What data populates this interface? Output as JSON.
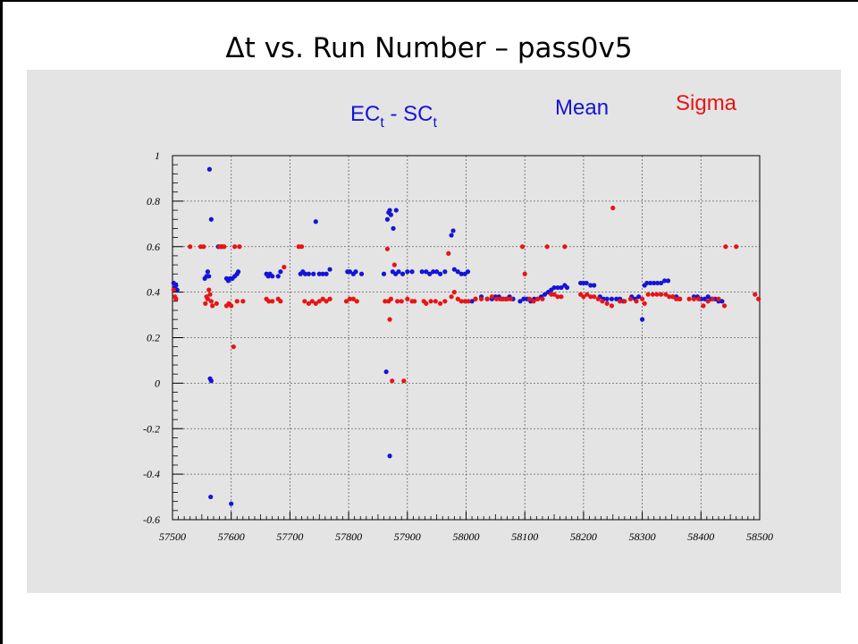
{
  "page": {
    "title": "Δt vs. Run Number – pass0v5"
  },
  "chart_data": {
    "type": "scatter",
    "title": "",
    "xlabel": "",
    "ylabel": "",
    "xlim": [
      57500,
      58500
    ],
    "ylim": [
      -0.6,
      1.0
    ],
    "x_ticks": [
      57500,
      57600,
      57700,
      57800,
      57900,
      58000,
      58100,
      58200,
      58300,
      58400,
      58500
    ],
    "y_ticks": [
      -0.6,
      -0.4,
      -0.2,
      0,
      0.2,
      0.4,
      0.6,
      0.8,
      1
    ],
    "x_tick_labels": [
      "57500",
      "57600",
      "57700",
      "57800",
      "57900",
      "58000",
      "58100",
      "58200",
      "58300",
      "58400",
      "58500"
    ],
    "y_tick_labels": [
      "-0.6",
      "-0.4",
      "-0.2",
      "0",
      "0.2",
      "0.4",
      "0.6",
      "0.8",
      "1"
    ],
    "grid": true,
    "annotations": {
      "quantity": {
        "main": "EC",
        "sub1": "t",
        "mid": " - SC",
        "sub2": "t"
      },
      "mean_label": "Mean",
      "sigma_label": "Sigma"
    },
    "series": [
      {
        "name": "Mean",
        "color": "#1414d8",
        "points": [
          [
            57502,
            0.44
          ],
          [
            57504,
            0.42
          ],
          [
            57506,
            0.43
          ],
          [
            57508,
            0.41
          ],
          [
            57555,
            0.46
          ],
          [
            57558,
            0.47
          ],
          [
            57560,
            0.49
          ],
          [
            57562,
            0.47
          ],
          [
            57564,
            0.02
          ],
          [
            57566,
            0.01
          ],
          [
            57563,
            0.94
          ],
          [
            57566,
            0.72
          ],
          [
            57565,
            -0.5
          ],
          [
            57578,
            0.6
          ],
          [
            57583,
            0.6
          ],
          [
            57592,
            0.46
          ],
          [
            57595,
            0.45
          ],
          [
            57598,
            0.46
          ],
          [
            57600,
            -0.53
          ],
          [
            57602,
            0.46
          ],
          [
            57606,
            0.47
          ],
          [
            57610,
            0.48
          ],
          [
            57612,
            0.49
          ],
          [
            57660,
            0.48
          ],
          [
            57663,
            0.47
          ],
          [
            57666,
            0.48
          ],
          [
            57670,
            0.47
          ],
          [
            57680,
            0.47
          ],
          [
            57684,
            0.49
          ],
          [
            57718,
            0.48
          ],
          [
            57722,
            0.49
          ],
          [
            57726,
            0.48
          ],
          [
            57732,
            0.48
          ],
          [
            57740,
            0.48
          ],
          [
            57744,
            0.71
          ],
          [
            57750,
            0.48
          ],
          [
            57756,
            0.48
          ],
          [
            57762,
            0.48
          ],
          [
            57768,
            0.5
          ],
          [
            57798,
            0.49
          ],
          [
            57802,
            0.49
          ],
          [
            57808,
            0.48
          ],
          [
            57812,
            0.49
          ],
          [
            57822,
            0.48
          ],
          [
            57860,
            0.48
          ],
          [
            57864,
            0.05
          ],
          [
            57866,
            0.72
          ],
          [
            57868,
            0.75
          ],
          [
            57870,
            0.76
          ],
          [
            57870,
            -0.32
          ],
          [
            57872,
            0.74
          ],
          [
            57876,
            0.68
          ],
          [
            57881,
            0.76
          ],
          [
            57875,
            0.49
          ],
          [
            57880,
            0.48
          ],
          [
            57885,
            0.49
          ],
          [
            57892,
            0.48
          ],
          [
            57900,
            0.49
          ],
          [
            57908,
            0.49
          ],
          [
            57925,
            0.49
          ],
          [
            57932,
            0.49
          ],
          [
            57938,
            0.48
          ],
          [
            57944,
            0.49
          ],
          [
            57950,
            0.49
          ],
          [
            57956,
            0.48
          ],
          [
            57964,
            0.49
          ],
          [
            57975,
            0.65
          ],
          [
            57978,
            0.67
          ],
          [
            57980,
            0.5
          ],
          [
            57986,
            0.49
          ],
          [
            57992,
            0.48
          ],
          [
            57998,
            0.48
          ],
          [
            58003,
            0.49
          ],
          [
            58010,
            0.36
          ],
          [
            58016,
            0.37
          ],
          [
            58026,
            0.38
          ],
          [
            58036,
            0.37
          ],
          [
            58044,
            0.37
          ],
          [
            58050,
            0.38
          ],
          [
            58056,
            0.38
          ],
          [
            58062,
            0.37
          ],
          [
            58068,
            0.37
          ],
          [
            58074,
            0.38
          ],
          [
            58080,
            0.37
          ],
          [
            58092,
            0.36
          ],
          [
            58098,
            0.37
          ],
          [
            58104,
            0.37
          ],
          [
            58110,
            0.36
          ],
          [
            58116,
            0.37
          ],
          [
            58122,
            0.37
          ],
          [
            58128,
            0.38
          ],
          [
            58134,
            0.39
          ],
          [
            58140,
            0.4
          ],
          [
            58145,
            0.41
          ],
          [
            58150,
            0.42
          ],
          [
            58156,
            0.42
          ],
          [
            58162,
            0.42
          ],
          [
            58168,
            0.43
          ],
          [
            58172,
            0.42
          ],
          [
            58195,
            0.44
          ],
          [
            58200,
            0.44
          ],
          [
            58205,
            0.44
          ],
          [
            58212,
            0.43
          ],
          [
            58218,
            0.43
          ],
          [
            58228,
            0.38
          ],
          [
            58234,
            0.37
          ],
          [
            58240,
            0.37
          ],
          [
            58248,
            0.37
          ],
          [
            58256,
            0.37
          ],
          [
            58262,
            0.37
          ],
          [
            58268,
            0.36
          ],
          [
            58282,
            0.38
          ],
          [
            58288,
            0.37
          ],
          [
            58294,
            0.38
          ],
          [
            58300,
            0.28
          ],
          [
            58304,
            0.43
          ],
          [
            58308,
            0.44
          ],
          [
            58314,
            0.44
          ],
          [
            58320,
            0.44
          ],
          [
            58326,
            0.44
          ],
          [
            58332,
            0.44
          ],
          [
            58338,
            0.45
          ],
          [
            58344,
            0.45
          ],
          [
            58352,
            0.38
          ],
          [
            58358,
            0.38
          ],
          [
            58364,
            0.37
          ],
          [
            58388,
            0.38
          ],
          [
            58394,
            0.38
          ],
          [
            58400,
            0.37
          ],
          [
            58406,
            0.37
          ],
          [
            58412,
            0.38
          ],
          [
            58418,
            0.37
          ],
          [
            58424,
            0.37
          ],
          [
            58430,
            0.36
          ],
          [
            58436,
            0.36
          ]
        ]
      },
      {
        "name": "Sigma",
        "color": "#e81414",
        "points": [
          [
            57502,
            0.41
          ],
          [
            57504,
            0.38
          ],
          [
            57506,
            0.37
          ],
          [
            57530,
            0.6
          ],
          [
            57548,
            0.6
          ],
          [
            57553,
            0.6
          ],
          [
            57556,
            0.35
          ],
          [
            57558,
            0.38
          ],
          [
            57560,
            0.37
          ],
          [
            57562,
            0.41
          ],
          [
            57564,
            0.39
          ],
          [
            57566,
            0.36
          ],
          [
            57568,
            0.34
          ],
          [
            57575,
            0.35
          ],
          [
            57580,
            0.6
          ],
          [
            57585,
            0.6
          ],
          [
            57588,
            0.6
          ],
          [
            57592,
            0.34
          ],
          [
            57596,
            0.35
          ],
          [
            57600,
            0.34
          ],
          [
            57604,
            0.16
          ],
          [
            57606,
            0.6
          ],
          [
            57610,
            0.36
          ],
          [
            57614,
            0.6
          ],
          [
            57620,
            0.36
          ],
          [
            57660,
            0.37
          ],
          [
            57664,
            0.36
          ],
          [
            57670,
            0.36
          ],
          [
            57680,
            0.37
          ],
          [
            57684,
            0.36
          ],
          [
            57690,
            0.51
          ],
          [
            57715,
            0.6
          ],
          [
            57720,
            0.6
          ],
          [
            57725,
            0.36
          ],
          [
            57732,
            0.35
          ],
          [
            57738,
            0.36
          ],
          [
            57744,
            0.35
          ],
          [
            57750,
            0.36
          ],
          [
            57756,
            0.37
          ],
          [
            57762,
            0.36
          ],
          [
            57768,
            0.37
          ],
          [
            57796,
            0.36
          ],
          [
            57802,
            0.37
          ],
          [
            57808,
            0.37
          ],
          [
            57814,
            0.36
          ],
          [
            57862,
            0.36
          ],
          [
            57866,
            0.59
          ],
          [
            57868,
            0.36
          ],
          [
            57870,
            0.28
          ],
          [
            57872,
            0.37
          ],
          [
            57874,
            0.01
          ],
          [
            57878,
            0.52
          ],
          [
            57883,
            0.36
          ],
          [
            57890,
            0.36
          ],
          [
            57894,
            0.01
          ],
          [
            57900,
            0.37
          ],
          [
            57908,
            0.36
          ],
          [
            57912,
            0.36
          ],
          [
            57928,
            0.36
          ],
          [
            57932,
            0.35
          ],
          [
            57940,
            0.36
          ],
          [
            57948,
            0.36
          ],
          [
            57956,
            0.35
          ],
          [
            57964,
            0.36
          ],
          [
            57970,
            0.57
          ],
          [
            57975,
            0.38
          ],
          [
            57980,
            0.4
          ],
          [
            57986,
            0.37
          ],
          [
            57992,
            0.36
          ],
          [
            57998,
            0.36
          ],
          [
            58004,
            0.36
          ],
          [
            58016,
            0.37
          ],
          [
            58026,
            0.37
          ],
          [
            58036,
            0.37
          ],
          [
            58044,
            0.38
          ],
          [
            58052,
            0.37
          ],
          [
            58058,
            0.37
          ],
          [
            58064,
            0.37
          ],
          [
            58070,
            0.37
          ],
          [
            58076,
            0.37
          ],
          [
            58096,
            0.6
          ],
          [
            58100,
            0.48
          ],
          [
            58108,
            0.37
          ],
          [
            58115,
            0.36
          ],
          [
            58122,
            0.37
          ],
          [
            58130,
            0.37
          ],
          [
            58138,
            0.6
          ],
          [
            58145,
            0.39
          ],
          [
            58150,
            0.39
          ],
          [
            58156,
            0.38
          ],
          [
            58162,
            0.38
          ],
          [
            58168,
            0.6
          ],
          [
            58195,
            0.39
          ],
          [
            58200,
            0.38
          ],
          [
            58206,
            0.39
          ],
          [
            58212,
            0.38
          ],
          [
            58218,
            0.38
          ],
          [
            58225,
            0.37
          ],
          [
            58232,
            0.36
          ],
          [
            58240,
            0.35
          ],
          [
            58248,
            0.34
          ],
          [
            58250,
            0.77
          ],
          [
            58262,
            0.36
          ],
          [
            58270,
            0.36
          ],
          [
            58280,
            0.37
          ],
          [
            58290,
            0.36
          ],
          [
            58300,
            0.37
          ],
          [
            58304,
            0.35
          ],
          [
            58310,
            0.39
          ],
          [
            58318,
            0.39
          ],
          [
            58325,
            0.39
          ],
          [
            58332,
            0.39
          ],
          [
            58340,
            0.39
          ],
          [
            58346,
            0.38
          ],
          [
            58352,
            0.38
          ],
          [
            58358,
            0.37
          ],
          [
            58364,
            0.37
          ],
          [
            58380,
            0.37
          ],
          [
            58388,
            0.37
          ],
          [
            58396,
            0.37
          ],
          [
            58404,
            0.34
          ],
          [
            58412,
            0.36
          ],
          [
            58420,
            0.37
          ],
          [
            58430,
            0.37
          ],
          [
            58440,
            0.34
          ],
          [
            58442,
            0.6
          ],
          [
            58460,
            0.6
          ],
          [
            58492,
            0.39
          ],
          [
            58498,
            0.37
          ]
        ]
      }
    ]
  }
}
